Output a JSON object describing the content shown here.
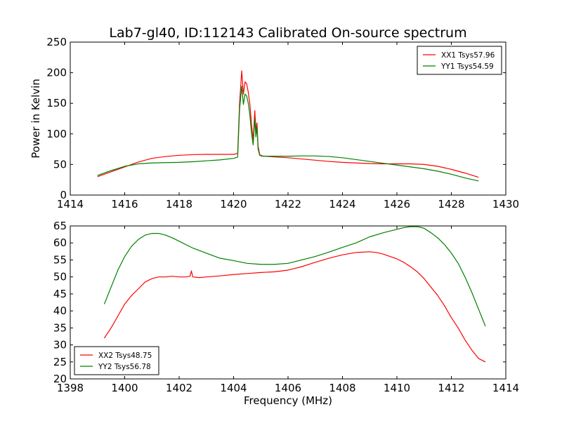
{
  "title": "Lab7-gl40, ID:112143 Calibrated On-source spectrum",
  "chart_data": [
    {
      "type": "line",
      "ylabel": "Power in Kelvin",
      "xlabel": "",
      "xlim": [
        1414,
        1430
      ],
      "ylim": [
        0,
        250
      ],
      "xticks": [
        "1414",
        "1416",
        "1418",
        "1420",
        "1422",
        "1424",
        "1426",
        "1428",
        "1430"
      ],
      "yticks": [
        "0",
        "50",
        "100",
        "150",
        "200",
        "250"
      ],
      "legend": "top-right",
      "series": [
        {
          "name": "XX1 Tsys57.96",
          "color": "#ff0000",
          "x": [
            1415.0,
            1415.5,
            1416.0,
            1416.5,
            1417.0,
            1417.5,
            1418.0,
            1418.5,
            1419.0,
            1419.5,
            1420.0,
            1420.15,
            1420.22,
            1420.3,
            1420.36,
            1420.42,
            1420.48,
            1420.54,
            1420.6,
            1420.66,
            1420.72,
            1420.78,
            1420.82,
            1420.86,
            1420.9,
            1420.96,
            1421.05,
            1421.3,
            1421.6,
            1422.0,
            1422.5,
            1423.0,
            1423.5,
            1424.0,
            1424.5,
            1425.0,
            1425.5,
            1426.0,
            1426.5,
            1427.0,
            1427.5,
            1428.0,
            1428.5,
            1429.0
          ],
          "y": [
            30,
            38,
            46,
            54,
            60,
            63,
            65,
            66,
            66.5,
            66.5,
            66.5,
            68,
            150,
            203,
            165,
            185,
            182,
            168,
            148,
            115,
            90,
            138,
            105,
            118,
            80,
            66,
            64,
            63,
            62,
            61,
            59,
            57,
            55,
            53.5,
            52.5,
            51.5,
            51,
            51,
            51,
            50,
            47,
            42,
            36,
            29
          ]
        },
        {
          "name": "YY1 Tsys54.59",
          "color": "#008000",
          "x": [
            1415.0,
            1415.5,
            1416.0,
            1416.5,
            1417.0,
            1417.5,
            1418.0,
            1418.5,
            1419.0,
            1419.5,
            1420.0,
            1420.15,
            1420.22,
            1420.3,
            1420.36,
            1420.42,
            1420.48,
            1420.54,
            1420.6,
            1420.66,
            1420.72,
            1420.78,
            1420.82,
            1420.86,
            1420.9,
            1420.96,
            1421.05,
            1421.3,
            1421.6,
            1422.0,
            1422.5,
            1423.0,
            1423.5,
            1424.0,
            1424.5,
            1425.0,
            1425.5,
            1426.0,
            1426.5,
            1427.0,
            1427.5,
            1428.0,
            1428.5,
            1429.0
          ],
          "y": [
            32,
            40,
            47,
            51,
            52.5,
            53,
            53.5,
            54.5,
            56,
            57.5,
            60,
            62,
            140,
            178,
            148,
            165,
            162,
            150,
            130,
            100,
            82,
            125,
            95,
            112,
            75,
            65,
            63.5,
            63.5,
            63.5,
            63.5,
            64,
            64,
            63,
            61,
            58,
            55,
            52,
            49,
            46,
            43,
            39,
            34,
            28,
            23
          ]
        }
      ]
    },
    {
      "type": "line",
      "xlabel": "Frequency (MHz)",
      "ylabel": "",
      "xlim": [
        1398,
        1414
      ],
      "ylim": [
        20,
        65
      ],
      "xticks": [
        "1398",
        "1400",
        "1402",
        "1404",
        "1406",
        "1408",
        "1410",
        "1412",
        "1414"
      ],
      "yticks": [
        "20",
        "25",
        "30",
        "35",
        "40",
        "45",
        "50",
        "55",
        "60",
        "65"
      ],
      "legend": "bottom-left",
      "series": [
        {
          "name": "XX2 Tsys48.75",
          "color": "#ff0000",
          "x": [
            1399.25,
            1399.5,
            1399.75,
            1400.0,
            1400.25,
            1400.5,
            1400.75,
            1401.0,
            1401.25,
            1401.5,
            1401.75,
            1402.0,
            1402.25,
            1402.4,
            1402.45,
            1402.5,
            1402.75,
            1403.0,
            1403.5,
            1404.0,
            1404.5,
            1405.0,
            1405.5,
            1406.0,
            1406.5,
            1407.0,
            1407.5,
            1408.0,
            1408.5,
            1409.0,
            1409.25,
            1409.5,
            1409.75,
            1410.0,
            1410.25,
            1410.5,
            1410.75,
            1411.0,
            1411.25,
            1411.5,
            1411.75,
            1412.0,
            1412.25,
            1412.5,
            1412.75,
            1413.0,
            1413.25
          ],
          "y": [
            32,
            35,
            38.5,
            42,
            44.5,
            46.5,
            48.5,
            49.5,
            50,
            50,
            50.2,
            50,
            50,
            50.2,
            51.8,
            50,
            49.8,
            50,
            50.3,
            50.7,
            51,
            51.3,
            51.5,
            52,
            53,
            54.3,
            55.5,
            56.5,
            57.2,
            57.4,
            57.2,
            56.7,
            56,
            55.3,
            54.3,
            53,
            51.5,
            49.5,
            47,
            44.5,
            41.5,
            38,
            35,
            31.5,
            28.5,
            26,
            25
          ]
        },
        {
          "name": "YY2 Tsys56.78",
          "color": "#008000",
          "x": [
            1399.25,
            1399.5,
            1399.75,
            1400.0,
            1400.25,
            1400.5,
            1400.75,
            1401.0,
            1401.25,
            1401.5,
            1401.75,
            1402.0,
            1402.5,
            1403.0,
            1403.5,
            1404.0,
            1404.5,
            1405.0,
            1405.5,
            1406.0,
            1406.5,
            1407.0,
            1407.5,
            1408.0,
            1408.5,
            1409.0,
            1409.5,
            1410.0,
            1410.25,
            1410.5,
            1410.75,
            1411.0,
            1411.25,
            1411.5,
            1411.75,
            1412.0,
            1412.25,
            1412.5,
            1412.75,
            1413.0,
            1413.25
          ],
          "y": [
            42,
            47,
            52,
            56,
            59,
            61,
            62.3,
            62.8,
            62.8,
            62.3,
            61.5,
            60.5,
            58.5,
            57,
            55.5,
            54.8,
            54,
            53.7,
            53.7,
            54,
            55,
            56,
            57.3,
            58.7,
            60,
            61.8,
            63,
            64,
            64.5,
            64.8,
            64.8,
            64.3,
            63,
            61.5,
            59.5,
            57,
            54,
            50,
            45.5,
            40.5,
            35.5
          ]
        }
      ]
    }
  ]
}
